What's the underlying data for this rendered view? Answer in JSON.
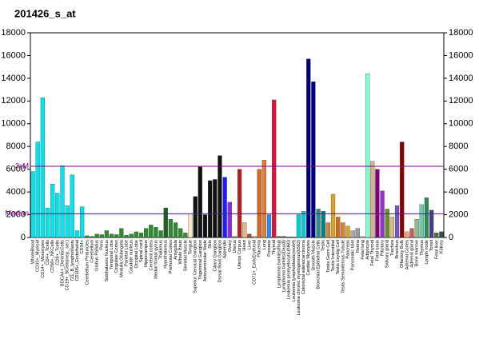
{
  "chart_data": {
    "type": "bar",
    "title": "201426_s_at",
    "categories": [
      "WholeBlood",
      "CD33+_Myeloid",
      "CD14+_Monocytes",
      "CD4+_Tcells",
      "CD56+_NKCells",
      "CD8+_Tcells",
      "BDCA4+_DentriticCells",
      "CD19+_BCells(neg._sel.)",
      "721_B_lymphoblasts",
      "CD105+_Endothelial",
      "CD34+",
      "Cerebellum Peduncles",
      "Cerebellum",
      "Globus Pallidus",
      "Pons",
      "Subthalamic Nucleus",
      "Temporal Lobe",
      "Cingulate Cortex",
      "Medulla Oblongata",
      "Parietal Lobe",
      "Caudate nucleus",
      "Occipital Lobe",
      "Spinal cord",
      "Hippocampus",
      "Cerebral cortex",
      "Medial frontal gyrus",
      "Thalamus",
      "Hypothalamus",
      "Prefrontal Cortex",
      "Amygdala",
      "Whole Brain",
      "Skeletal Muscle",
      "Tongue",
      "Superior Cervical Ganglion",
      "Trigeminal Ganglion",
      "Atrioventricular Node",
      "Skin",
      "Ciliary Ganglion",
      "Dorsal Root Ganglion",
      "Appendix",
      "Ovary",
      "Uterus",
      "Uterus Corpus",
      "Heart",
      "Liver",
      "CD71+_EarlyErythroid",
      "Placenta",
      "Lung",
      "Prostate",
      "Thyroid",
      "Lymphoma burkitts(Raji)",
      "Lymphoma burkitts(Daudi)",
      "Leukemia promyelocytic(hl60)",
      "Leukemia lymphoblastic(molt4)",
      "Leukemia chronic myelogenous(k562)",
      "Colorectal adenocarcinoma",
      "Cardiac Myocytes",
      "Smooth Muscle",
      "Bronchial Epithelial Cells",
      "Testis",
      "Testis Germ Cell",
      "Testis Interstitial",
      "Testis Leydig Cell",
      "Testis Seminiferous Tubule",
      "Pancreas",
      "Pancreatic Islet",
      "Retina",
      "Fetal lung",
      "Adipocyte",
      "Fetal Thyroid",
      "Fetal brain",
      "Pituitary",
      "Salivary gland",
      "Trachea",
      "Bronchus",
      "Olfactory Bulb",
      "Adrenal Cortex",
      "Adrenal gland",
      "Bone marrow",
      "Thymus",
      "Lymph node",
      "Tonsil",
      "Fetal liver",
      "Kidney"
    ],
    "values": [
      5800,
      8400,
      12300,
      2600,
      4700,
      3900,
      6300,
      2800,
      5500,
      600,
      2700,
      150,
      100,
      300,
      250,
      600,
      300,
      250,
      800,
      200,
      300,
      500,
      400,
      800,
      1100,
      900,
      600,
      2600,
      1600,
      1300,
      800,
      400,
      2100,
      3600,
      6200,
      2000,
      5000,
      5100,
      7200,
      5300,
      3100,
      100,
      6000,
      1300,
      300,
      100,
      6000,
      6800,
      2000,
      12100,
      100,
      100,
      50,
      50,
      2000,
      2300,
      15700,
      13700,
      2500,
      2300,
      1300,
      3800,
      1800,
      1300,
      1000,
      600,
      800,
      100,
      14400,
      6700,
      6000,
      4100,
      2500,
      1800,
      2800,
      8400,
      500,
      800,
      1600,
      2900,
      3500,
      2400,
      400,
      500
    ],
    "colors": [
      "#00e5ee",
      "#00e5ee",
      "#00e5ee",
      "#00e5ee",
      "#00e5ee",
      "#00e5ee",
      "#00e5ee",
      "#00e5ee",
      "#00e5ee",
      "#00e5ee",
      "#00e5ee",
      "#2e8b2e",
      "#2e8b2e",
      "#2e8b2e",
      "#2e8b2e",
      "#2e8b2e",
      "#2e8b2e",
      "#2e8b2e",
      "#2e8b2e",
      "#2e8b2e",
      "#2e8b2e",
      "#2e8b2e",
      "#2e8b2e",
      "#2e8b2e",
      "#2e8b2e",
      "#2e8b2e",
      "#2e8b2e",
      "#1f5f1f",
      "#2e8b2e",
      "#2e8b2e",
      "#2e8b2e",
      "#3a8a3a",
      "#ffe4c4",
      "#111111",
      "#111111",
      "#111111",
      "#111111",
      "#111111",
      "#111111",
      "#1c1cff",
      "#8a2be2",
      "#888888",
      "#b22222",
      "#deb887",
      "#a0522d",
      "#aaaaaa",
      "#d2691e",
      "#e07b39",
      "#1e90ff",
      "#dc143c",
      "#555555",
      "#555555",
      "#555555",
      "#555555",
      "#00ced1",
      "#00ced1",
      "#000080",
      "#000080",
      "#2e8b8b",
      "#008080",
      "#cd853f",
      "#daa520",
      "#d2691e",
      "#cd853f",
      "#daa520",
      "#aaaaaa",
      "#999999",
      "#cccccc",
      "#7fffd4",
      "#d2b48c",
      "#800080",
      "#9932cc",
      "#6b8e23",
      "#deb887",
      "#6a5acd",
      "#8b0000",
      "#f4a460",
      "#cd5c5c",
      "#8fbc8f",
      "#66cdaa",
      "#2e8b57",
      "#483d8b",
      "#556b2f",
      "#2f4f4f"
    ],
    "ylim": [
      0,
      18000
    ],
    "yticks": [
      0,
      2000,
      4000,
      6000,
      8000,
      10000,
      12000,
      14000,
      16000,
      18000
    ],
    "reference_lines": [
      {
        "label": "3xM",
        "value": 6258,
        "color": "#800080"
      },
      {
        "label": "Median",
        "value": 2086,
        "color": "#800080"
      }
    ]
  }
}
